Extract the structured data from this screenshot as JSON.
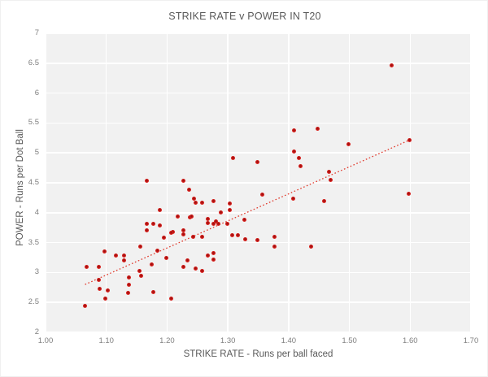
{
  "chart": {
    "title": "STRIKE RATE v POWER IN T20",
    "xlabel": "STRIKE RATE - Runs per ball faced",
    "ylabel": "POWER - Runs per Dot Ball"
  },
  "chart_data": {
    "type": "scatter",
    "title": "STRIKE RATE v POWER IN T20",
    "xlabel": "STRIKE RATE - Runs per ball faced",
    "ylabel": "POWER - Runs per Dot Ball",
    "xlim": [
      1.0,
      1.7
    ],
    "ylim": [
      2,
      7
    ],
    "xtick_values": [
      1.0,
      1.1,
      1.2,
      1.3,
      1.4,
      1.5,
      1.6,
      1.7
    ],
    "xtick_labels": [
      "1.00",
      "1.10",
      "1.20",
      "1.30",
      "1.40",
      "1.50",
      "1.60",
      "1.70"
    ],
    "ytick_values": [
      2,
      2.5,
      3,
      3.5,
      4,
      4.5,
      5,
      5.5,
      6,
      6.5,
      7
    ],
    "ytick_labels": [
      "2",
      "2.5",
      "3",
      "3.5",
      "4",
      "4.5",
      "5",
      "5.5",
      "6",
      "6.5",
      "7"
    ],
    "grid": true,
    "legend": false,
    "plot_bg": "#f1f1f1",
    "gridline_color": "#ffffff",
    "marker_color": "#dc2420",
    "trendline": {
      "style": "dotted",
      "color": "#e0392c",
      "x1": 1.065,
      "y1": 2.8,
      "x2": 1.6,
      "y2": 5.22
    },
    "points": [
      [
        1.569,
        6.47
      ],
      [
        1.448,
        5.41
      ],
      [
        1.409,
        5.37
      ],
      [
        1.499,
        5.14
      ],
      [
        1.599,
        5.22
      ],
      [
        1.409,
        5.02
      ],
      [
        1.417,
        4.92
      ],
      [
        1.42,
        4.78
      ],
      [
        1.308,
        4.92
      ],
      [
        1.349,
        4.84
      ],
      [
        1.467,
        4.68
      ],
      [
        1.469,
        4.55
      ],
      [
        1.167,
        4.54
      ],
      [
        1.227,
        4.53
      ],
      [
        1.236,
        4.39
      ],
      [
        1.357,
        4.3
      ],
      [
        1.407,
        4.23
      ],
      [
        1.459,
        4.2
      ],
      [
        1.597,
        4.31
      ],
      [
        1.244,
        4.24
      ],
      [
        1.247,
        4.17
      ],
      [
        1.257,
        4.17
      ],
      [
        1.277,
        4.2
      ],
      [
        1.303,
        4.16
      ],
      [
        1.303,
        4.05
      ],
      [
        1.289,
        4.01
      ],
      [
        1.188,
        4.04
      ],
      [
        1.217,
        3.93
      ],
      [
        1.237,
        3.92
      ],
      [
        1.24,
        3.94
      ],
      [
        1.267,
        3.9
      ],
      [
        1.28,
        3.86
      ],
      [
        1.327,
        3.88
      ],
      [
        1.284,
        3.82
      ],
      [
        1.167,
        3.81
      ],
      [
        1.177,
        3.82
      ],
      [
        1.188,
        3.78
      ],
      [
        1.167,
        3.7
      ],
      [
        1.21,
        3.68
      ],
      [
        1.227,
        3.64
      ],
      [
        1.257,
        3.6
      ],
      [
        1.227,
        3.7
      ],
      [
        1.207,
        3.67
      ],
      [
        1.267,
        3.83
      ],
      [
        1.277,
        3.82
      ],
      [
        1.299,
        3.81
      ],
      [
        1.195,
        3.58
      ],
      [
        1.243,
        3.59
      ],
      [
        1.156,
        3.44
      ],
      [
        1.307,
        3.62
      ],
      [
        1.317,
        3.63
      ],
      [
        1.328,
        3.56
      ],
      [
        1.349,
        3.54
      ],
      [
        1.377,
        3.6
      ],
      [
        1.377,
        3.43
      ],
      [
        1.437,
        3.43
      ],
      [
        1.267,
        3.29
      ],
      [
        1.277,
        3.33
      ],
      [
        1.277,
        3.21
      ],
      [
        1.247,
        3.07
      ],
      [
        1.257,
        3.03
      ],
      [
        1.233,
        3.2
      ],
      [
        1.227,
        3.09
      ],
      [
        1.175,
        3.14
      ],
      [
        1.184,
        3.36
      ],
      [
        1.199,
        3.24
      ],
      [
        1.097,
        3.35
      ],
      [
        1.116,
        3.28
      ],
      [
        1.129,
        3.29
      ],
      [
        1.129,
        3.2
      ],
      [
        1.068,
        3.09
      ],
      [
        1.088,
        3.09
      ],
      [
        1.155,
        3.03
      ],
      [
        1.087,
        2.88
      ],
      [
        1.089,
        2.73
      ],
      [
        1.103,
        2.7
      ],
      [
        1.137,
        2.92
      ],
      [
        1.137,
        2.8
      ],
      [
        1.157,
        2.94
      ],
      [
        1.136,
        2.66
      ],
      [
        1.177,
        2.67
      ],
      [
        1.207,
        2.56
      ],
      [
        1.099,
        2.56
      ],
      [
        1.065,
        2.44
      ]
    ]
  }
}
